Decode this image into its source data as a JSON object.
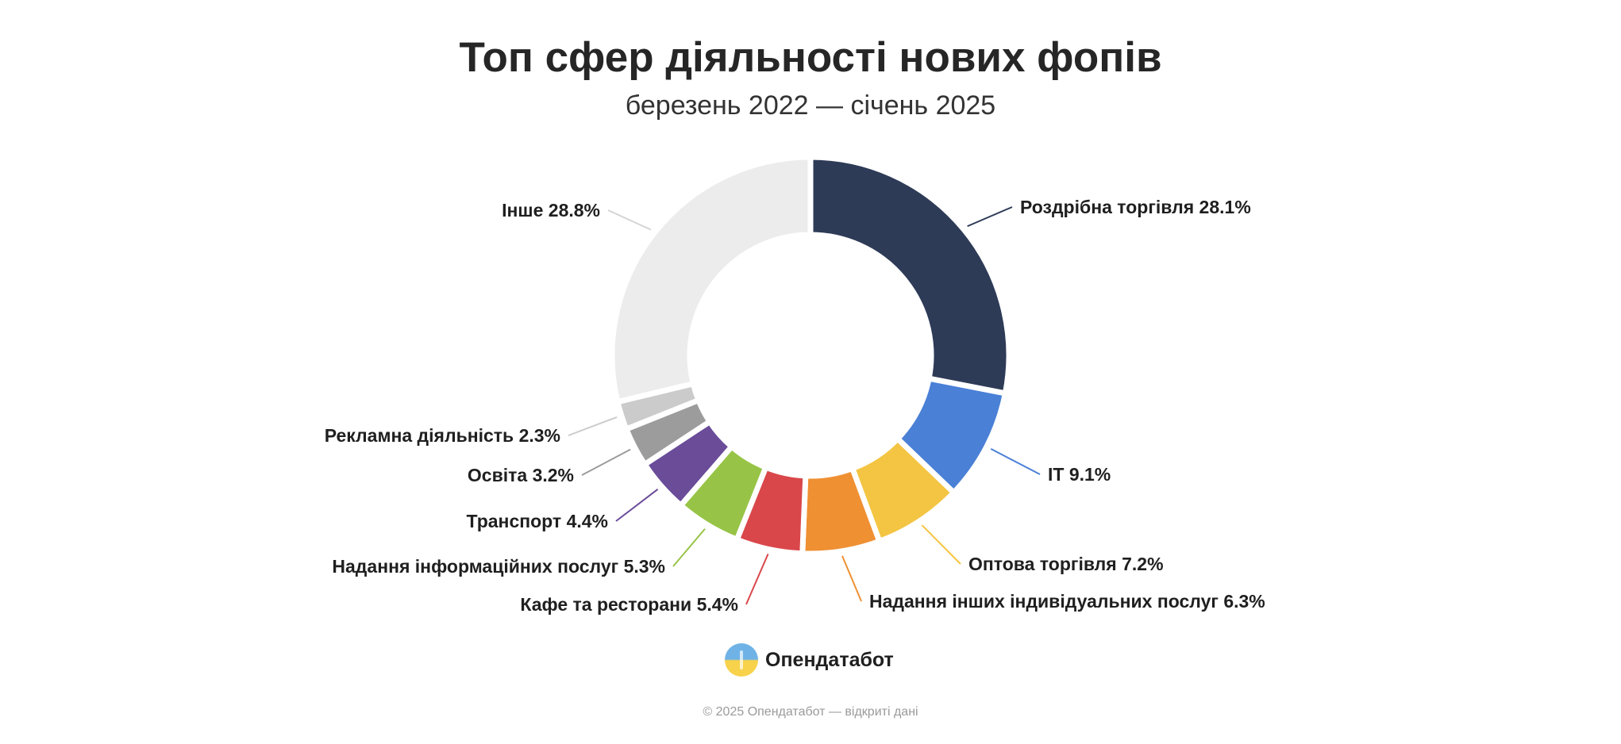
{
  "title": "Топ сфер діяльності нових фопів",
  "subtitle": "березень 2022 — січень 2025",
  "brand": {
    "name": "Опендатабот",
    "logo_icon": "opendatabot-logo-icon"
  },
  "footer": "© 2025 Опендатабот — відкриті дані",
  "chart_data": {
    "type": "pie",
    "variant": "donut",
    "unit": "%",
    "title": "Топ сфер діяльності нових фопів",
    "subtitle": "березень 2022 — січень 2025",
    "slices": [
      {
        "name": "Роздрібна торгівля",
        "value": 28.1,
        "label": "Роздрібна торгівля 28.1%",
        "color": "#2e3b57"
      },
      {
        "name": "ІТ",
        "value": 9.1,
        "label": "ІТ 9.1%",
        "color": "#4a80d6"
      },
      {
        "name": "Оптова торгівля",
        "value": 7.2,
        "label": "Оптова торгівля 7.2%",
        "color": "#f4c543"
      },
      {
        "name": "Надання інших індивідуальних послуг",
        "value": 6.3,
        "label": "Надання інших індивідуальних послуг 6.3%",
        "color": "#ef9033"
      },
      {
        "name": "Кафе та ресторани",
        "value": 5.4,
        "label": "Кафе та ресторани 5.4%",
        "color": "#d9474a"
      },
      {
        "name": "Надання інформаційних послуг",
        "value": 5.3,
        "label": "Надання інформаційних послуг 5.3%",
        "color": "#97c446"
      },
      {
        "name": "Транспорт",
        "value": 4.4,
        "label": "Транспорт 4.4%",
        "color": "#6a4c99"
      },
      {
        "name": "Освіта",
        "value": 3.2,
        "label": "Освіта 3.2%",
        "color": "#9c9c9c"
      },
      {
        "name": "Рекламна діяльність",
        "value": 2.3,
        "label": "Рекламна діяльність 2.3%",
        "color": "#cbcbcb"
      },
      {
        "name": "Інше",
        "value": 28.8,
        "label": "Інше 28.8%",
        "color": "#ececec"
      }
    ]
  }
}
